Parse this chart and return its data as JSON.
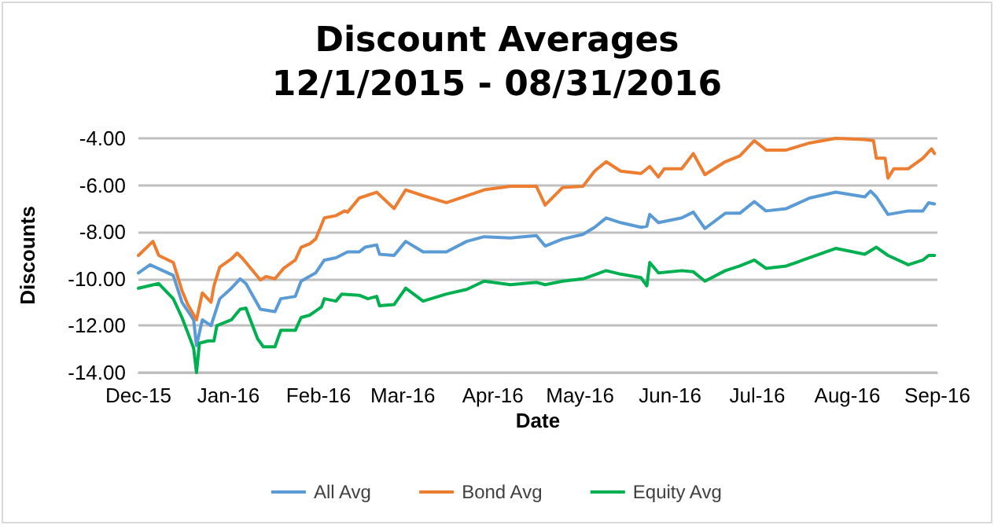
{
  "chart_data": {
    "type": "line",
    "title": "Discount Averages",
    "subtitle": "12/1/2015 - 08/31/2016",
    "xlabel": "Date",
    "ylabel": "Discounts",
    "xlim": [
      "2015-12-01",
      "2016-09-01"
    ],
    "xticks": [
      {
        "value": "2015-12-01",
        "label": "Dec-15"
      },
      {
        "value": "2016-01-01",
        "label": "Jan-16"
      },
      {
        "value": "2016-02-01",
        "label": "Feb-16"
      },
      {
        "value": "2016-03-01",
        "label": "Mar-16"
      },
      {
        "value": "2016-04-01",
        "label": "Apr-16"
      },
      {
        "value": "2016-05-01",
        "label": "May-16"
      },
      {
        "value": "2016-06-01",
        "label": "Jun-16"
      },
      {
        "value": "2016-07-01",
        "label": "Jul-16"
      },
      {
        "value": "2016-08-01",
        "label": "Aug-16"
      },
      {
        "value": "2016-09-01",
        "label": "Sep-16"
      }
    ],
    "ylim": [
      -14,
      -4
    ],
    "yticks": [
      {
        "value": -14,
        "label": "-14.00"
      },
      {
        "value": -12,
        "label": "-12.00"
      },
      {
        "value": -10,
        "label": "-10.00"
      },
      {
        "value": -8,
        "label": "-8.00"
      },
      {
        "value": -6,
        "label": "-6.00"
      },
      {
        "value": -4,
        "label": "-4.00"
      }
    ],
    "grid": "y",
    "legend": "bottom",
    "marker": "none",
    "line_style": "solid",
    "series": [
      {
        "name": "All Avg",
        "color": "#5b9bd5",
        "x": [
          "2015-12-01",
          "2015-12-05",
          "2015-12-13",
          "2015-12-16",
          "2015-12-20",
          "2015-12-21",
          "2015-12-23",
          "2015-12-26",
          "2015-12-29",
          "2016-01-02",
          "2016-01-05",
          "2016-01-07",
          "2016-01-12",
          "2016-01-17",
          "2016-01-19",
          "2016-01-24",
          "2016-01-26",
          "2016-01-31",
          "2016-02-03",
          "2016-02-07",
          "2016-02-11",
          "2016-02-15",
          "2016-02-17",
          "2016-02-21",
          "2016-02-22",
          "2016-02-27",
          "2016-03-02",
          "2016-03-08",
          "2016-03-16",
          "2016-03-23",
          "2016-03-29",
          "2016-04-07",
          "2016-04-16",
          "2016-04-19",
          "2016-04-25",
          "2016-05-02",
          "2016-05-06",
          "2016-05-10",
          "2016-05-15",
          "2016-05-22",
          "2016-05-24",
          "2016-05-25",
          "2016-05-28",
          "2016-06-05",
          "2016-06-09",
          "2016-06-13",
          "2016-06-20",
          "2016-06-25",
          "2016-06-30",
          "2016-07-04",
          "2016-07-11",
          "2016-07-19",
          "2016-07-28",
          "2016-08-07",
          "2016-08-09",
          "2016-08-11",
          "2016-08-15",
          "2016-08-22",
          "2016-08-27",
          "2016-08-29",
          "2016-08-31"
        ],
        "values": [
          -9.75,
          -9.4,
          -9.85,
          -11.0,
          -11.75,
          -12.85,
          -11.75,
          -12.0,
          -10.85,
          -10.4,
          -10.0,
          -10.2,
          -11.3,
          -11.4,
          -10.85,
          -10.75,
          -10.1,
          -9.75,
          -9.2,
          -9.1,
          -8.85,
          -8.85,
          -8.65,
          -8.55,
          -8.95,
          -9.0,
          -8.4,
          -8.85,
          -8.85,
          -8.4,
          -8.2,
          -8.25,
          -8.15,
          -8.6,
          -8.3,
          -8.1,
          -7.8,
          -7.4,
          -7.6,
          -7.8,
          -7.75,
          -7.25,
          -7.6,
          -7.4,
          -7.15,
          -7.85,
          -7.2,
          -7.2,
          -6.7,
          -7.1,
          -7.0,
          -6.55,
          -6.3,
          -6.5,
          -6.25,
          -6.5,
          -7.25,
          -7.1,
          -7.1,
          -6.75,
          -6.8
        ]
      },
      {
        "name": "Bond Avg",
        "color": "#ed7d31",
        "x": [
          "2015-12-01",
          "2015-12-06",
          "2015-12-08",
          "2015-12-13",
          "2015-12-16",
          "2015-12-18",
          "2015-12-21",
          "2015-12-23",
          "2015-12-26",
          "2015-12-27",
          "2015-12-29",
          "2016-01-02",
          "2016-01-04",
          "2016-01-06",
          "2016-01-12",
          "2016-01-14",
          "2016-01-17",
          "2016-01-20",
          "2016-01-24",
          "2016-01-26",
          "2016-01-29",
          "2016-01-31",
          "2016-02-01",
          "2016-02-03",
          "2016-02-07",
          "2016-02-10",
          "2016-02-11",
          "2016-02-15",
          "2016-02-21",
          "2016-02-27",
          "2016-03-02",
          "2016-03-08",
          "2016-03-16",
          "2016-03-29",
          "2016-04-07",
          "2016-04-16",
          "2016-04-19",
          "2016-04-25",
          "2016-05-02",
          "2016-05-06",
          "2016-05-10",
          "2016-05-15",
          "2016-05-22",
          "2016-05-25",
          "2016-05-28",
          "2016-05-30",
          "2016-06-05",
          "2016-06-09",
          "2016-06-13",
          "2016-06-20",
          "2016-06-25",
          "2016-06-30",
          "2016-07-04",
          "2016-07-11",
          "2016-07-19",
          "2016-07-28",
          "2016-08-07",
          "2016-08-10",
          "2016-08-11",
          "2016-08-14",
          "2016-08-15",
          "2016-08-17",
          "2016-08-22",
          "2016-08-27",
          "2016-08-30",
          "2016-08-31"
        ],
        "values": [
          -9.0,
          -8.4,
          -9.0,
          -9.3,
          -10.5,
          -11.1,
          -11.75,
          -10.6,
          -11.0,
          -10.3,
          -9.5,
          -9.15,
          -8.9,
          -9.15,
          -10.05,
          -9.9,
          -10.0,
          -9.55,
          -9.2,
          -8.65,
          -8.5,
          -8.3,
          -8.0,
          -7.4,
          -7.3,
          -7.1,
          -7.15,
          -6.55,
          -6.3,
          -7.0,
          -6.2,
          -6.45,
          -6.75,
          -6.2,
          -6.05,
          -6.05,
          -6.85,
          -6.1,
          -6.05,
          -5.4,
          -5.0,
          -5.4,
          -5.5,
          -5.2,
          -5.65,
          -5.3,
          -5.3,
          -4.65,
          -5.55,
          -5.0,
          -4.75,
          -4.1,
          -4.5,
          -4.5,
          -4.2,
          -4.0,
          -4.05,
          -4.1,
          -4.85,
          -4.85,
          -5.7,
          -5.3,
          -5.3,
          -4.85,
          -4.45,
          -4.65
        ]
      },
      {
        "name": "Equity Avg",
        "color": "#00b050",
        "x": [
          "2015-12-01",
          "2015-12-08",
          "2015-12-13",
          "2015-12-16",
          "2015-12-18",
          "2015-12-20",
          "2015-12-21",
          "2015-12-22",
          "2015-12-25",
          "2015-12-27",
          "2015-12-28",
          "2016-01-02",
          "2016-01-05",
          "2016-01-07",
          "2016-01-11",
          "2016-01-13",
          "2016-01-17",
          "2016-01-19",
          "2016-01-24",
          "2016-01-26",
          "2016-01-29",
          "2016-02-02",
          "2016-02-03",
          "2016-02-07",
          "2016-02-09",
          "2016-02-15",
          "2016-02-18",
          "2016-02-21",
          "2016-02-22",
          "2016-02-27",
          "2016-03-02",
          "2016-03-08",
          "2016-03-16",
          "2016-03-23",
          "2016-03-29",
          "2016-04-07",
          "2016-04-16",
          "2016-04-19",
          "2016-04-25",
          "2016-05-02",
          "2016-05-10",
          "2016-05-15",
          "2016-05-22",
          "2016-05-24",
          "2016-05-25",
          "2016-05-28",
          "2016-06-05",
          "2016-06-09",
          "2016-06-13",
          "2016-06-20",
          "2016-06-25",
          "2016-06-30",
          "2016-07-04",
          "2016-07-11",
          "2016-07-19",
          "2016-07-28",
          "2016-08-07",
          "2016-08-11",
          "2016-08-15",
          "2016-08-22",
          "2016-08-27",
          "2016-08-29",
          "2016-08-31"
        ],
        "values": [
          -10.4,
          -10.2,
          -10.85,
          -11.65,
          -12.3,
          -12.95,
          -14.0,
          -12.75,
          -12.65,
          -12.65,
          -12.0,
          -11.75,
          -11.3,
          -11.25,
          -12.55,
          -12.9,
          -12.9,
          -12.2,
          -12.2,
          -11.65,
          -11.55,
          -11.2,
          -10.85,
          -10.95,
          -10.65,
          -10.7,
          -10.85,
          -10.75,
          -11.15,
          -11.1,
          -10.4,
          -10.95,
          -10.65,
          -10.45,
          -10.1,
          -10.25,
          -10.15,
          -10.25,
          -10.1,
          -10.0,
          -9.65,
          -9.8,
          -9.95,
          -10.3,
          -9.3,
          -9.75,
          -9.65,
          -9.7,
          -10.1,
          -9.65,
          -9.45,
          -9.2,
          -9.55,
          -9.45,
          -9.1,
          -8.7,
          -8.95,
          -8.65,
          -9.0,
          -9.4,
          -9.2,
          -9.0,
          -9.0
        ]
      }
    ]
  }
}
